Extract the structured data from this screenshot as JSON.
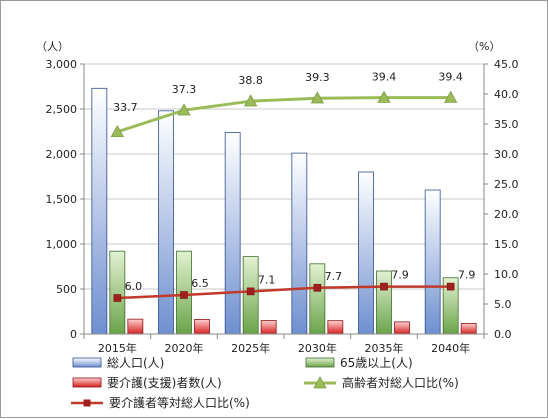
{
  "chart_data": {
    "type": "bar",
    "categories": [
      "2015年",
      "2020年",
      "2025年",
      "2030年",
      "2035年",
      "2040年"
    ],
    "left_axis": {
      "unit": "（人）",
      "ylim": [
        0,
        3000
      ],
      "ticks": [
        "0",
        "500",
        "1,000",
        "1,500",
        "2,000",
        "2,500",
        "3,000"
      ],
      "tick_values": [
        0,
        500,
        1000,
        1500,
        2000,
        2500,
        3000
      ]
    },
    "right_axis": {
      "unit": "（%）",
      "ylim": [
        0,
        45
      ],
      "ticks": [
        "0.0",
        "5.0",
        "10.0",
        "15.0",
        "20.0",
        "25.0",
        "30.0",
        "35.0",
        "40.0",
        "45.0"
      ],
      "tick_values": [
        0,
        5,
        10,
        15,
        20,
        25,
        30,
        35,
        40,
        45
      ]
    },
    "bar_series": [
      {
        "name": "総人口(人)",
        "values": [
          2730,
          2480,
          2240,
          2010,
          1800,
          1600
        ],
        "color_top": "#ffffff",
        "color_bottom": "#6f8fcf",
        "stroke": "#2f4f8f"
      },
      {
        "name": "65歳以上(人)",
        "values": [
          920,
          920,
          860,
          780,
          700,
          625
        ],
        "color_top": "#e3f1d2",
        "color_bottom": "#6aa44a",
        "stroke": "#3f6f2a"
      },
      {
        "name": "要介護(支援)者数(人)",
        "values": [
          165,
          162,
          150,
          148,
          135,
          118
        ],
        "color_top": "#ffd0d0",
        "color_bottom": "#d42020",
        "stroke": "#8f1515"
      }
    ],
    "line_series": [
      {
        "name": "高齢者対総人口比(%)",
        "values": [
          33.7,
          37.3,
          38.8,
          39.3,
          39.4,
          39.4
        ],
        "labels": [
          "33.7",
          "37.3",
          "38.8",
          "39.3",
          "39.4",
          "39.4"
        ],
        "color": "#9bbb59",
        "marker": "triangle"
      },
      {
        "name": "要介護者等対総人口比(%)",
        "values": [
          6.0,
          6.5,
          7.1,
          7.7,
          7.9,
          7.9
        ],
        "labels": [
          "6.0",
          "6.5",
          "7.1",
          "7.7",
          "7.9",
          "7.9"
        ],
        "color": "#c0392b",
        "marker": "square"
      }
    ],
    "grid": true,
    "legend_position": "bottom"
  }
}
